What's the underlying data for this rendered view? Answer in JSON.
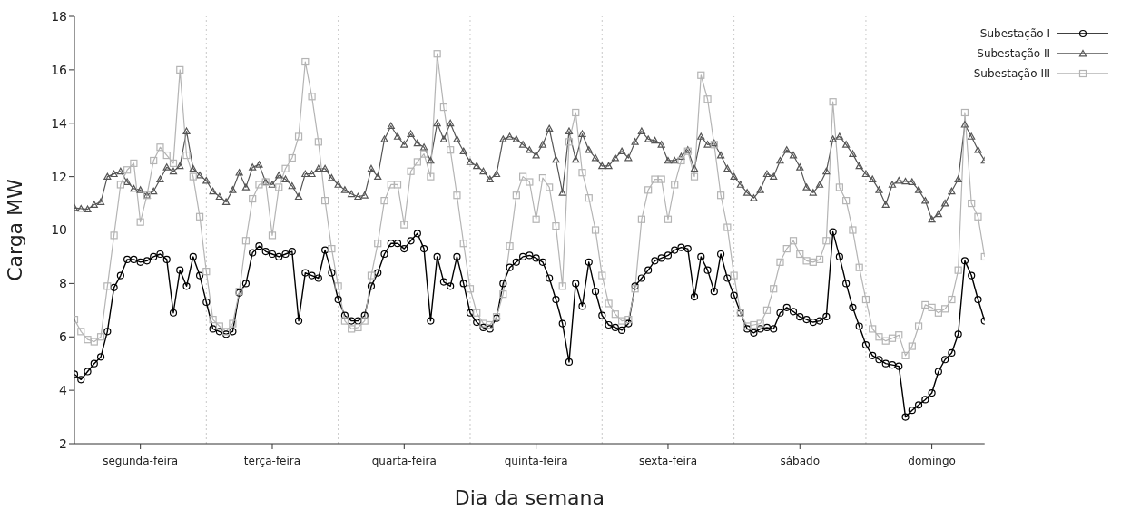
{
  "chart_data": {
    "type": "line",
    "xlabel": "Dia da semana",
    "ylabel": "Carga MW",
    "categories": [
      null,
      null,
      null,
      null,
      null,
      null,
      null,
      null,
      null,
      null,
      "segunda-feira",
      null,
      null,
      null,
      null,
      null,
      null,
      null,
      null,
      null,
      null,
      null,
      null,
      null,
      null,
      null,
      null,
      null,
      null,
      null,
      "terça-feira",
      null,
      null,
      null,
      null,
      null,
      null,
      null,
      null,
      null,
      null,
      null,
      null,
      null,
      null,
      null,
      null,
      null,
      null,
      null,
      "quarta-feira",
      null,
      null,
      null,
      null,
      null,
      null,
      null,
      null,
      null,
      null,
      null,
      null,
      null,
      null,
      null,
      null,
      null,
      null,
      null,
      "quinta-feira",
      null,
      null,
      null,
      null,
      null,
      null,
      null,
      null,
      null,
      null,
      null,
      null,
      null,
      null,
      null,
      null,
      null,
      null,
      null,
      "sexta-feira",
      null,
      null,
      null,
      null,
      null,
      null,
      null,
      null,
      null,
      null,
      null,
      null,
      null,
      null,
      null,
      null,
      null,
      null,
      null,
      "sábado",
      null,
      null,
      null,
      null,
      null,
      null,
      null,
      null,
      null,
      null,
      null,
      null,
      null,
      null,
      null,
      null,
      null,
      null,
      null,
      "domingo",
      null,
      null,
      null,
      null,
      null,
      null,
      null,
      null
    ],
    "ylim": [
      2,
      18
    ],
    "yticks": [
      2,
      4,
      6,
      8,
      10,
      12,
      14,
      16,
      18
    ],
    "grid": false,
    "legend": "top right",
    "line_style": "solid",
    "series": [
      {
        "name": "Subestação I",
        "color": "#000000",
        "marker": "circle",
        "values": [
          4.6,
          4.4,
          4.7,
          5.0,
          5.25,
          6.2,
          7.85,
          8.3,
          8.9,
          8.9,
          8.8,
          8.85,
          9.0,
          9.1,
          8.9,
          6.9,
          8.5,
          7.9,
          9.0,
          8.3,
          7.3,
          6.3,
          6.2,
          6.1,
          6.2,
          7.65,
          8.0,
          9.15,
          9.4,
          9.2,
          9.1,
          9.0,
          9.1,
          9.2,
          6.6,
          8.4,
          8.3,
          8.2,
          9.25,
          8.4,
          7.4,
          6.8,
          6.6,
          6.6,
          6.8,
          7.9,
          8.4,
          9.1,
          9.5,
          9.5,
          9.3,
          9.6,
          9.87,
          9.3,
          6.6,
          9.0,
          8.06,
          7.9,
          9.0,
          8.0,
          6.9,
          6.55,
          6.35,
          6.3,
          6.7,
          8.0,
          8.6,
          8.8,
          9.0,
          9.05,
          8.95,
          8.8,
          8.2,
          7.4,
          6.5,
          5.06,
          8.0,
          7.15,
          8.8,
          7.7,
          6.8,
          6.45,
          6.35,
          6.25,
          6.5,
          7.9,
          8.2,
          8.5,
          8.85,
          8.95,
          9.05,
          9.25,
          9.35,
          9.3,
          7.5,
          9.0,
          8.5,
          7.7,
          9.1,
          8.2,
          7.55,
          6.9,
          6.3,
          6.15,
          6.3,
          6.35,
          6.3,
          6.9,
          7.1,
          6.95,
          6.75,
          6.65,
          6.55,
          6.6,
          6.76,
          9.93,
          9.0,
          8.0,
          7.1,
          6.4,
          5.7,
          5.3,
          5.15,
          5.0,
          4.95,
          4.9,
          3.0,
          3.25,
          3.45,
          3.65,
          3.9,
          4.7,
          5.15,
          5.4,
          6.1,
          8.85,
          8.3,
          7.4,
          6.6
        ]
      },
      {
        "name": "Subestação II",
        "color": "#555555",
        "marker": "triangle",
        "values": [
          10.83,
          10.8,
          10.78,
          10.95,
          11.05,
          12.0,
          12.1,
          12.2,
          11.8,
          11.55,
          11.5,
          11.3,
          11.45,
          11.9,
          12.35,
          12.2,
          12.4,
          13.7,
          12.3,
          12.05,
          11.85,
          11.45,
          11.25,
          11.05,
          11.5,
          12.15,
          11.6,
          12.35,
          12.45,
          11.8,
          11.7,
          12.05,
          11.9,
          11.65,
          11.25,
          12.1,
          12.1,
          12.3,
          12.3,
          11.95,
          11.7,
          11.5,
          11.35,
          11.25,
          11.3,
          12.3,
          12.0,
          13.4,
          13.9,
          13.5,
          13.2,
          13.6,
          13.25,
          13.1,
          12.6,
          14.0,
          13.4,
          14.0,
          13.4,
          12.95,
          12.55,
          12.4,
          12.2,
          11.9,
          12.1,
          13.4,
          13.5,
          13.4,
          13.2,
          13.0,
          12.8,
          13.2,
          13.8,
          12.64,
          11.4,
          13.7,
          12.64,
          13.6,
          13.0,
          12.7,
          12.4,
          12.4,
          12.7,
          12.95,
          12.7,
          13.3,
          13.7,
          13.4,
          13.35,
          13.2,
          12.6,
          12.6,
          12.75,
          13.0,
          12.3,
          13.5,
          13.2,
          13.25,
          12.8,
          12.3,
          12.0,
          11.7,
          11.4,
          11.2,
          11.5,
          12.1,
          12.0,
          12.6,
          13.0,
          12.8,
          12.35,
          11.6,
          11.4,
          11.7,
          12.2,
          13.4,
          13.5,
          13.2,
          12.85,
          12.4,
          12.1,
          11.9,
          11.5,
          10.95,
          11.7,
          11.85,
          11.82,
          11.8,
          11.5,
          11.1,
          10.4,
          10.6,
          11.0,
          11.45,
          11.9,
          13.95,
          13.5,
          13.0,
          12.6
        ]
      },
      {
        "name": "Subestação III",
        "color": "#b4b4b4",
        "marker": "square",
        "values": [
          6.65,
          6.2,
          5.9,
          5.82,
          6.0,
          7.9,
          9.8,
          11.7,
          12.25,
          12.5,
          10.3,
          11.3,
          12.6,
          13.1,
          12.8,
          12.5,
          16.0,
          12.8,
          12.0,
          10.5,
          8.45,
          6.65,
          6.4,
          6.2,
          6.5,
          7.7,
          9.6,
          11.17,
          11.7,
          11.8,
          9.8,
          11.6,
          12.3,
          12.7,
          13.5,
          16.3,
          15.0,
          13.3,
          11.1,
          9.3,
          7.9,
          6.6,
          6.3,
          6.35,
          6.6,
          8.3,
          9.5,
          11.1,
          11.7,
          11.7,
          10.2,
          12.2,
          12.55,
          12.85,
          12.0,
          16.6,
          14.6,
          13.0,
          11.3,
          9.5,
          7.8,
          6.9,
          6.5,
          6.45,
          6.75,
          7.6,
          9.4,
          11.3,
          12.0,
          11.8,
          10.4,
          11.95,
          11.6,
          10.15,
          7.9,
          13.3,
          14.4,
          12.15,
          11.2,
          10.0,
          8.3,
          7.25,
          6.85,
          6.6,
          6.65,
          7.8,
          10.4,
          11.5,
          11.9,
          11.9,
          10.4,
          11.7,
          12.6,
          12.95,
          12.0,
          15.8,
          14.9,
          13.2,
          11.3,
          10.1,
          8.3,
          6.9,
          6.4,
          6.45,
          6.5,
          7.0,
          7.8,
          8.8,
          9.3,
          9.6,
          9.1,
          8.85,
          8.8,
          8.9,
          9.6,
          14.8,
          11.6,
          11.1,
          10.0,
          8.6,
          7.4,
          6.3,
          6.0,
          5.85,
          5.95,
          6.07,
          5.3,
          5.65,
          6.4,
          7.2,
          7.1,
          6.9,
          7.05,
          7.4,
          8.5,
          14.4,
          11.0,
          10.5,
          9.0
        ]
      }
    ]
  }
}
